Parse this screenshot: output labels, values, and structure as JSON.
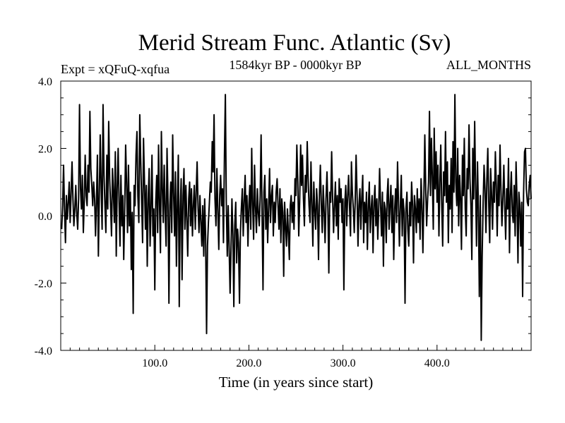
{
  "chart_data": {
    "type": "line",
    "title": "Merid Stream Func. Atlantic (Sv)",
    "subtitle_left": "Expt = xQFuQ-xqfua",
    "subtitle_center": "1584kyr BP - 0000kyr BP",
    "subtitle_right": "ALL_MONTHS",
    "xlabel": "Time (in years since start)",
    "ylabel": "",
    "xlim": [
      0,
      500
    ],
    "ylim": [
      -4.0,
      4.0
    ],
    "x_ticks": [
      100,
      200,
      300,
      400
    ],
    "x_tick_labels": [
      "100.0",
      "200.0",
      "300.0",
      "400.0"
    ],
    "y_ticks": [
      4,
      2,
      0,
      -2,
      -4
    ],
    "y_tick_labels": [
      "4.0",
      "2.0",
      "0.0",
      "-2.0",
      "-4.0"
    ],
    "zero_line": true,
    "grid": false,
    "series": [
      {
        "name": "Merid Stream Func. Atlantic",
        "x_start": 1,
        "x_step": 1,
        "values": [
          -0.4,
          0.3,
          1.5,
          0.2,
          -0.8,
          0.6,
          -0.1,
          0.4,
          1.0,
          -0.2,
          0.7,
          1.6,
          0.5,
          -0.3,
          0.2,
          0.9,
          0.1,
          -0.4,
          0.5,
          3.3,
          0.8,
          0.2,
          1.2,
          -0.5,
          0.4,
          1.8,
          0.6,
          0.3,
          1.5,
          0.7,
          3.1,
          1.4,
          0.9,
          0.3,
          1.0,
          0.5,
          -0.6,
          0.4,
          1.8,
          -1.2,
          0.6,
          2.4,
          0.8,
          -0.4,
          3.3,
          1.2,
          0.3,
          -0.5,
          1.8,
          0.2,
          2.8,
          1.1,
          0.3,
          -0.6,
          1.4,
          0.7,
          -0.2,
          1.9,
          -1.2,
          0.8,
          2.0,
          0.4,
          -0.9,
          1.2,
          -0.3,
          0.6,
          -1.3,
          0.2,
          2.1,
          1.0,
          -0.5,
          1.5,
          -0.3,
          0.7,
          -1.6,
          0.1,
          -2.9,
          0.9,
          0.3,
          1.8,
          2.5,
          0.6,
          -0.2,
          3.0,
          1.7,
          0.4,
          -0.8,
          2.3,
          1.1,
          -0.4,
          0.9,
          -1.5,
          0.5,
          1.4,
          -0.9,
          0.3,
          1.8,
          -0.6,
          0.2,
          -2.2,
          0.4,
          1.2,
          -0.5,
          2.1,
          0.3,
          -1.1,
          2.5,
          0.8,
          -0.2,
          1.5,
          0.1,
          -0.9,
          2.0,
          0.6,
          -2.6,
          0.3,
          1.0,
          -0.5,
          2.4,
          0.7,
          -0.6,
          1.3,
          -1.5,
          0.4,
          1.8,
          -2.7,
          0.2,
          1.1,
          -1.9,
          0.6,
          1.4,
          -0.4,
          0.9,
          -0.1,
          -1.2,
          0.5,
          1.0,
          -0.3,
          0.8,
          -0.6,
          0.3,
          0.9,
          -0.4,
          0.7,
          1.6,
          0.2,
          -0.5,
          0.6,
          -0.2,
          -0.9,
          0.3,
          -1.2,
          0.5,
          -0.6,
          -3.5,
          -0.9,
          -0.2,
          0.4,
          1.0,
          0.7,
          2.2,
          1.3,
          3.0,
          0.5,
          -0.3,
          1.4,
          0.2,
          -1.0,
          0.6,
          1.2,
          0.3,
          0.8,
          -0.8,
          1.8,
          3.6,
          0.4,
          -1.2,
          0.3,
          -0.9,
          -2.3,
          -1.0,
          0.5,
          -0.6,
          -2.7,
          -0.3,
          0.4,
          -1.4,
          -0.4,
          -0.8,
          -2.6,
          -0.5,
          0.2,
          0.8,
          -0.6,
          0.4,
          1.2,
          -0.2,
          0.6,
          -0.9,
          0.3,
          0.9,
          -0.4,
          2.0,
          0.4,
          -0.7,
          1.5,
          0.3,
          -0.5,
          0.8,
          0.1,
          -0.3,
          0.6,
          2.4,
          0.2,
          -2.2,
          0.7,
          1.2,
          -0.4,
          0.5,
          -0.8,
          0.3,
          1.4,
          -0.2,
          0.6,
          0.9,
          -0.6,
          0.4,
          -0.2,
          0.7,
          1.1,
          0.3,
          -0.4,
          0.8,
          -0.8,
          0.5,
          0.1,
          -1.8,
          0.4,
          -0.3,
          -0.9,
          0.2,
          -0.5,
          -1.3,
          0.3,
          0.6,
          -0.2,
          0.4,
          -0.4,
          1.1,
          0.6,
          2.1,
          1.0,
          -0.6,
          0.4,
          2.1,
          0.9,
          1.8,
          0.5,
          -0.3,
          1.2,
          0.7,
          2.2,
          1.1,
          0.3,
          -0.2,
          1.6,
          0.4,
          -0.9,
          1.0,
          0.2,
          -0.4,
          0.8,
          0.3,
          -1.3,
          0.6,
          1.5,
          0.3,
          -0.5,
          0.9,
          0.1,
          -0.8,
          0.5,
          1.3,
          0.2,
          -1.7,
          0.7,
          0.4,
          1.9,
          0.6,
          -0.5,
          0.3,
          1.0,
          -0.3,
          0.6,
          -0.7,
          1.1,
          0.4,
          0.8,
          -0.2,
          0.5,
          -2.2,
          0.4,
          0.9,
          -0.3,
          0.6,
          1.2,
          0.3,
          -0.6,
          1.6,
          0.7,
          0.2,
          -0.5,
          0.4,
          1.8,
          0.6,
          -0.9,
          0.3,
          0.8,
          -0.4,
          0.5,
          1.2,
          -0.8,
          0.4,
          -0.2,
          0.7,
          -1.0,
          0.3,
          1.0,
          -0.5,
          0.2,
          0.6,
          -1.1,
          0.4,
          0.9,
          -0.3,
          0.5,
          -0.7,
          0.2,
          1.4,
          0.3,
          -0.6,
          0.7,
          -1.5,
          0.4,
          0.2,
          -0.8,
          0.6,
          1.1,
          -0.4,
          0.3,
          0.9,
          -0.5,
          0.6,
          -1.3,
          0.2,
          0.8,
          -0.2,
          1.6,
          0.4,
          -0.9,
          0.3,
          1.2,
          -0.6,
          0.5,
          0.1,
          -2.6,
          0.2,
          0.7,
          -0.4,
          -0.9,
          0.4,
          -0.3,
          1.0,
          0.3,
          -1.4,
          0.6,
          0.2,
          -0.5,
          0.8,
          -0.2,
          0.5,
          -0.7,
          1.1,
          0.3,
          -1.1,
          0.6,
          2.4,
          0.8,
          -0.3,
          0.5,
          1.0,
          3.1,
          0.6,
          2.3,
          1.2,
          -0.4,
          2.6,
          0.8,
          1.9,
          0.4,
          1.5,
          -0.6,
          1.0,
          2.1,
          0.3,
          -0.9,
          1.3,
          0.6,
          2.5,
          0.4,
          1.6,
          -0.8,
          0.9,
          0.2,
          1.7,
          -0.5,
          2.2,
          0.7,
          3.6,
          1.0,
          0.3,
          2.0,
          -0.3,
          1.2,
          0.5,
          -1.0,
          1.8,
          0.6,
          2.3,
          0.2,
          -0.6,
          1.4,
          0.8,
          2.7,
          1.1,
          0.3,
          -1.3,
          2.0,
          0.5,
          2.8,
          0.9,
          -0.9,
          1.6,
          0.2,
          -2.4,
          0.6,
          -3.7,
          -1.2,
          0.4,
          1.5,
          0.8,
          -0.5,
          1.1,
          2.0,
          0.3,
          -0.8,
          1.4,
          0.6,
          -0.4,
          1.0,
          0.4,
          1.9,
          0.9,
          -0.6,
          1.2,
          0.3,
          2.1,
          0.7,
          -0.3,
          0.5,
          1.5,
          0.3,
          -0.7,
          0.8,
          0.2,
          1.7,
          -1.1,
          0.6,
          1.3,
          0.1,
          -0.2,
          0.9,
          -0.6,
          1.6,
          0.5,
          -1.4,
          0.7,
          0.3,
          -0.9,
          0.4,
          -2.4,
          0.6,
          1.9,
          2.0,
          0.8,
          0.4,
          0.3,
          0.9,
          1.2,
          0.5
        ]
      }
    ]
  }
}
